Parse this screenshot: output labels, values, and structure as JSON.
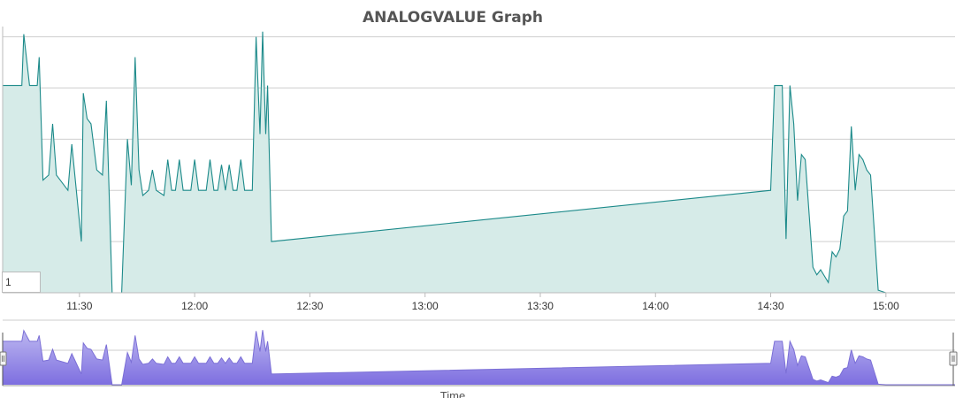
{
  "chart_data": {
    "type": "area",
    "title": "ANALOGVALUE Graph",
    "xlabel": "Time",
    "ylabel": "",
    "x_ticks": [
      "11:30",
      "12:00",
      "12:30",
      "13:00",
      "13:30",
      "14:00",
      "14:30",
      "15:00"
    ],
    "xlim": [
      "11:10",
      "15:18"
    ],
    "ylim": [
      0,
      5.2
    ],
    "grid": "horizontal",
    "legend": "none",
    "series": [
      {
        "color": "#1c8a8a",
        "fill": "#d6ebe8",
        "points": [
          [
            "11:10",
            4.05
          ],
          [
            "11:15",
            4.05
          ],
          [
            "11:15.5",
            5.05
          ],
          [
            "11:17",
            4.05
          ],
          [
            "11:19",
            4.05
          ],
          [
            "11:19.5",
            4.6
          ],
          [
            "11:20.5",
            2.2
          ],
          [
            "11:22",
            2.3
          ],
          [
            "11:23",
            3.3
          ],
          [
            "11:24",
            2.3
          ],
          [
            "11:27",
            2.0
          ],
          [
            "11:28",
            2.9
          ],
          [
            "11:30.5",
            1.0
          ],
          [
            "11:31",
            3.9
          ],
          [
            "11:32",
            3.4
          ],
          [
            "11:33",
            3.3
          ],
          [
            "11:34.5",
            2.4
          ],
          [
            "11:36",
            2.3
          ],
          [
            "11:37",
            3.75
          ],
          [
            "11:38.5",
            0.0
          ],
          [
            "11:41",
            0.0
          ],
          [
            "11:42.5",
            3.0
          ],
          [
            "11:43.5",
            2.1
          ],
          [
            "11:44.5",
            4.6
          ],
          [
            "11:45.5",
            2.4
          ],
          [
            "11:46.5",
            1.9
          ],
          [
            "11:48",
            2.0
          ],
          [
            "11:49",
            2.4
          ],
          [
            "11:50",
            2.0
          ],
          [
            "11:52",
            1.9
          ],
          [
            "11:53",
            2.6
          ],
          [
            "11:54",
            2.0
          ],
          [
            "11:55",
            2.0
          ],
          [
            "11:56",
            2.6
          ],
          [
            "11:57",
            2.0
          ],
          [
            "11:59",
            2.0
          ],
          [
            "12:00",
            2.6
          ],
          [
            "12:01",
            2.0
          ],
          [
            "12:03",
            2.0
          ],
          [
            "12:04",
            2.6
          ],
          [
            "12:05",
            2.0
          ],
          [
            "12:06",
            2.0
          ],
          [
            "12:07",
            2.5
          ],
          [
            "12:08",
            2.0
          ],
          [
            "12:09",
            2.5
          ],
          [
            "12:10",
            2.0
          ],
          [
            "12:11",
            2.0
          ],
          [
            "12:12",
            2.6
          ],
          [
            "12:13",
            2.0
          ],
          [
            "12:15",
            2.0
          ],
          [
            "12:16",
            5.0
          ],
          [
            "12:17",
            3.1
          ],
          [
            "12:17.7",
            5.1
          ],
          [
            "12:18.5",
            3.1
          ],
          [
            "12:19",
            4.05
          ],
          [
            "12:20",
            1.0
          ],
          [
            "14:30",
            2.0
          ],
          [
            "14:31",
            4.05
          ],
          [
            "14:33",
            4.05
          ],
          [
            "14:34",
            1.05
          ],
          [
            "14:35",
            4.05
          ],
          [
            "14:36",
            3.3
          ],
          [
            "14:37",
            1.8
          ],
          [
            "14:38",
            2.7
          ],
          [
            "14:39",
            2.6
          ],
          [
            "14:41",
            0.5
          ],
          [
            "14:42",
            0.35
          ],
          [
            "14:43",
            0.45
          ],
          [
            "14:45",
            0.2
          ],
          [
            "14:46",
            0.8
          ],
          [
            "14:47",
            0.7
          ],
          [
            "14:48",
            0.85
          ],
          [
            "14:49",
            1.5
          ],
          [
            "14:50",
            1.6
          ],
          [
            "14:51",
            3.25
          ],
          [
            "14:52",
            2.0
          ],
          [
            "14:53",
            2.7
          ],
          [
            "14:54",
            2.6
          ],
          [
            "14:55",
            2.4
          ],
          [
            "14:56",
            2.3
          ],
          [
            "14:58",
            0.05
          ],
          [
            "15:00",
            0.0
          ],
          [
            "15:18",
            0.0
          ]
        ]
      }
    ],
    "navigator": {
      "color": "#7b6fd6"
    }
  },
  "zoom_input": {
    "value": "1"
  }
}
